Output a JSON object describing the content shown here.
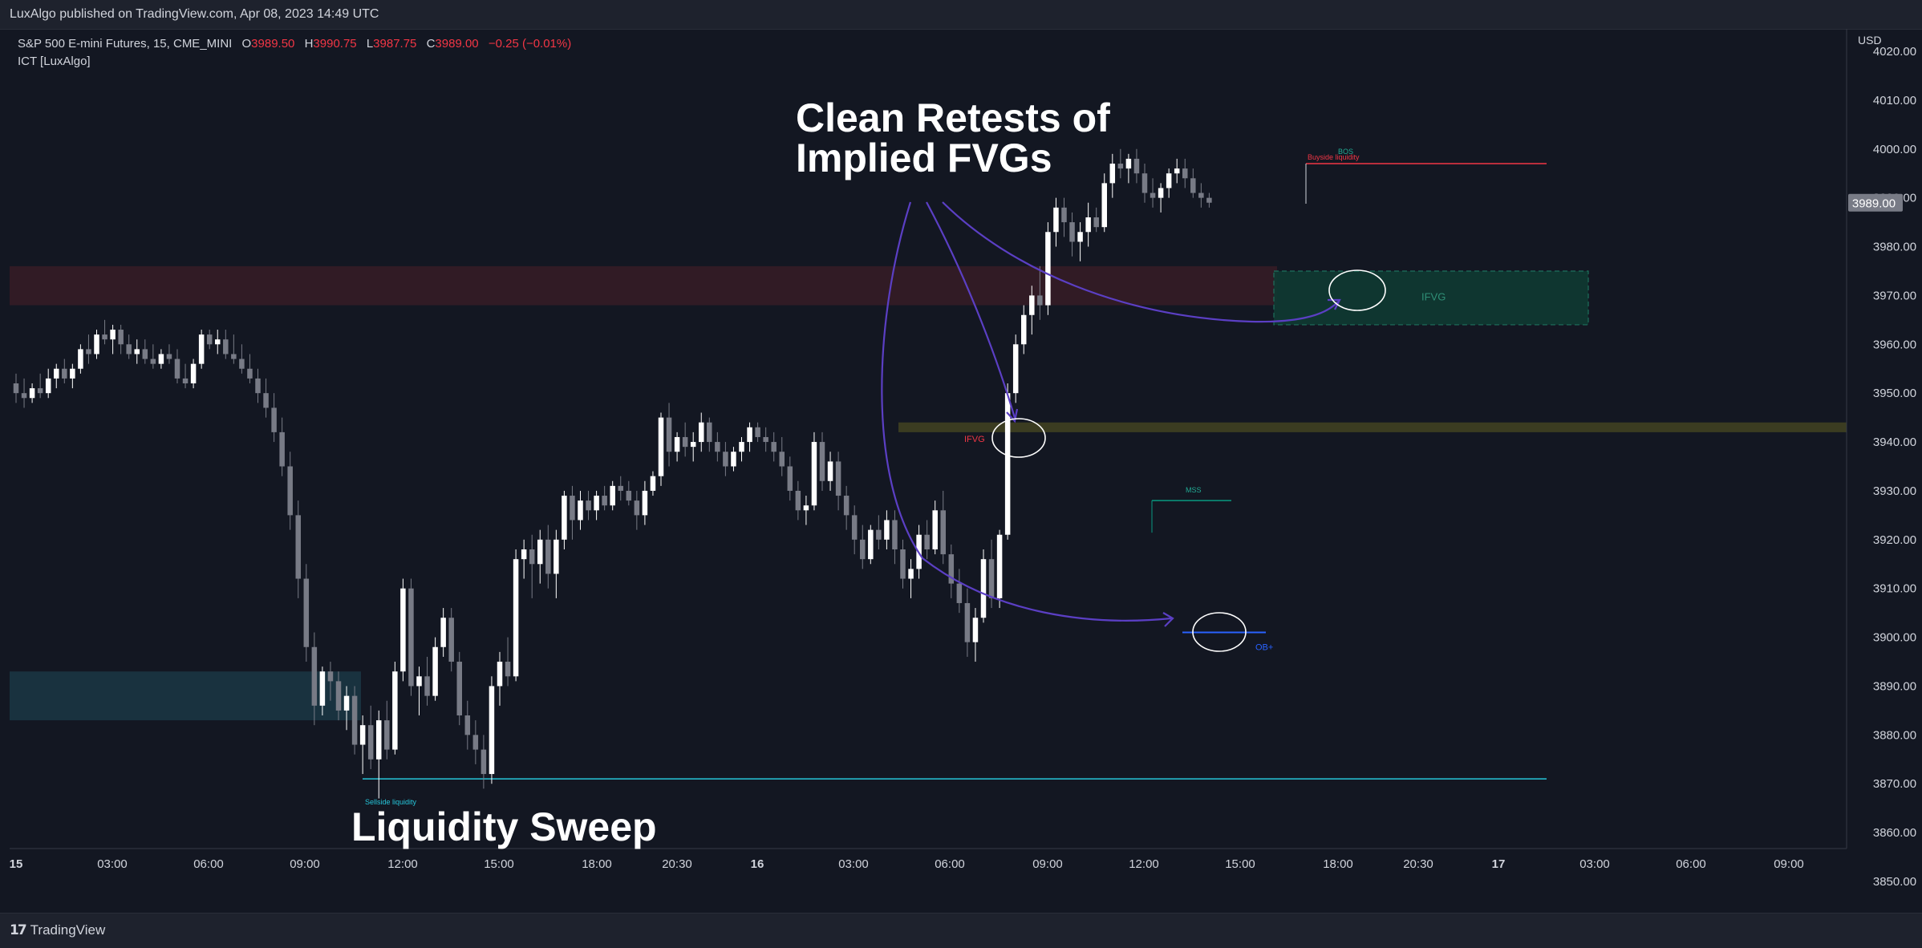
{
  "publish_info": "LuxAlgo published on TradingView.com, Apr 08, 2023 14:49 UTC",
  "symbol": {
    "name": "S&P 500 E-mini Futures, 15, CME_MINI",
    "open_label": "O",
    "open": "3989.50",
    "high_label": "H",
    "high": "3990.75",
    "low_label": "L",
    "low": "3987.75",
    "close_label": "C",
    "close": "3989.00",
    "change": "−0.25 (−0.01%)"
  },
  "indicator": "ICT [LuxAlgo]",
  "currency": "USD",
  "last_price": "3989.00",
  "brand": "TradingView",
  "annotations": {
    "headline_line1": "Clean Retests of",
    "headline_line2": "Implied FVGs",
    "sweep": "Liquidity Sweep",
    "ifvg_upper": "IFVG",
    "ifvg_mid": "IFVG",
    "bos": "BOS",
    "buyside": "Buyside liquidity",
    "mss": "MSS",
    "ob": "OB+",
    "sellside": "Sellside liquidity"
  },
  "colors": {
    "background": "#131722",
    "bull": "#ffffff",
    "bear": "#787b86",
    "accent_purple": "#5b3fc4",
    "sellside_line": "#26c6da",
    "buyside_line": "#f23645",
    "ob_line": "#2962ff",
    "mss_line": "#089981"
  },
  "chart_data": {
    "type": "candlestick",
    "y_ticks": [
      3850,
      3860,
      3870,
      3880,
      3890,
      3900,
      3910,
      3920,
      3930,
      3940,
      3950,
      3960,
      3970,
      3980,
      3990,
      4000,
      4010,
      4020
    ],
    "ylim": [
      3847,
      4021
    ],
    "x_ticks": [
      "15",
      "03:00",
      "06:00",
      "09:00",
      "12:00",
      "15:00",
      "18:00",
      "20:30",
      "16",
      "03:00",
      "06:00",
      "09:00",
      "12:00",
      "15:00",
      "18:00",
      "20:30",
      "17",
      "03:00",
      "06:00",
      "09:00"
    ],
    "x_tick_bold": [
      true,
      false,
      false,
      false,
      false,
      false,
      false,
      false,
      true,
      false,
      false,
      false,
      false,
      false,
      false,
      false,
      true,
      false,
      false,
      false
    ],
    "candles": [
      [
        3952,
        3954,
        3948,
        3950
      ],
      [
        3950,
        3953,
        3947,
        3949
      ],
      [
        3949,
        3952,
        3948,
        3951
      ],
      [
        3951,
        3954,
        3949,
        3950
      ],
      [
        3950,
        3955,
        3949,
        3953
      ],
      [
        3953,
        3956,
        3951,
        3955
      ],
      [
        3955,
        3957,
        3952,
        3953
      ],
      [
        3953,
        3956,
        3951,
        3955
      ],
      [
        3955,
        3960,
        3954,
        3959
      ],
      [
        3959,
        3962,
        3956,
        3958
      ],
      [
        3958,
        3963,
        3957,
        3962
      ],
      [
        3962,
        3965,
        3960,
        3961
      ],
      [
        3961,
        3964,
        3958,
        3963
      ],
      [
        3963,
        3964,
        3958,
        3960
      ],
      [
        3960,
        3962,
        3957,
        3958
      ],
      [
        3958,
        3961,
        3956,
        3959
      ],
      [
        3959,
        3961,
        3956,
        3957
      ],
      [
        3957,
        3960,
        3955,
        3956
      ],
      [
        3956,
        3959,
        3955,
        3958
      ],
      [
        3958,
        3960,
        3956,
        3957
      ],
      [
        3957,
        3959,
        3952,
        3953
      ],
      [
        3953,
        3956,
        3951,
        3952
      ],
      [
        3952,
        3957,
        3951,
        3956
      ],
      [
        3956,
        3963,
        3955,
        3962
      ],
      [
        3962,
        3963,
        3959,
        3960
      ],
      [
        3960,
        3963,
        3958,
        3961
      ],
      [
        3961,
        3963,
        3957,
        3958
      ],
      [
        3958,
        3962,
        3956,
        3957
      ],
      [
        3957,
        3960,
        3954,
        3955
      ],
      [
        3955,
        3958,
        3952,
        3953
      ],
      [
        3953,
        3955,
        3948,
        3950
      ],
      [
        3950,
        3953,
        3945,
        3947
      ],
      [
        3947,
        3950,
        3940,
        3942
      ],
      [
        3942,
        3945,
        3933,
        3935
      ],
      [
        3935,
        3938,
        3922,
        3925
      ],
      [
        3925,
        3928,
        3908,
        3912
      ],
      [
        3912,
        3915,
        3895,
        3898
      ],
      [
        3898,
        3901,
        3882,
        3886
      ],
      [
        3886,
        3894,
        3884,
        3893
      ],
      [
        3893,
        3895,
        3887,
        3891
      ],
      [
        3891,
        3893,
        3883,
        3885
      ],
      [
        3885,
        3890,
        3881,
        3888
      ],
      [
        3888,
        3890,
        3876,
        3878
      ],
      [
        3878,
        3884,
        3872,
        3882
      ],
      [
        3882,
        3886,
        3873,
        3875
      ],
      [
        3875,
        3885,
        3867,
        3883
      ],
      [
        3883,
        3887,
        3875,
        3877
      ],
      [
        3877,
        3895,
        3876,
        3893
      ],
      [
        3893,
        3912,
        3891,
        3910
      ],
      [
        3910,
        3912,
        3888,
        3890
      ],
      [
        3890,
        3894,
        3884,
        3892
      ],
      [
        3892,
        3896,
        3886,
        3888
      ],
      [
        3888,
        3900,
        3887,
        3898
      ],
      [
        3898,
        3906,
        3896,
        3904
      ],
      [
        3904,
        3906,
        3893,
        3895
      ],
      [
        3895,
        3897,
        3882,
        3884
      ],
      [
        3884,
        3887,
        3877,
        3880
      ],
      [
        3880,
        3883,
        3874,
        3877
      ],
      [
        3877,
        3880,
        3869,
        3872
      ],
      [
        3872,
        3892,
        3870,
        3890
      ],
      [
        3890,
        3897,
        3886,
        3895
      ],
      [
        3895,
        3900,
        3890,
        3892
      ],
      [
        3892,
        3918,
        3891,
        3916
      ],
      [
        3916,
        3920,
        3912,
        3918
      ],
      [
        3918,
        3921,
        3908,
        3915
      ],
      [
        3915,
        3922,
        3911,
        3920
      ],
      [
        3920,
        3923,
        3910,
        3913
      ],
      [
        3913,
        3922,
        3908,
        3920
      ],
      [
        3920,
        3930,
        3918,
        3929
      ],
      [
        3929,
        3931,
        3920,
        3924
      ],
      [
        3924,
        3930,
        3922,
        3928
      ],
      [
        3928,
        3930,
        3924,
        3926
      ],
      [
        3926,
        3930,
        3924,
        3929
      ],
      [
        3929,
        3931,
        3926,
        3927
      ],
      [
        3927,
        3932,
        3926,
        3931
      ],
      [
        3931,
        3933,
        3928,
        3930
      ],
      [
        3930,
        3932,
        3927,
        3928
      ],
      [
        3928,
        3930,
        3922,
        3925
      ],
      [
        3925,
        3932,
        3923,
        3930
      ],
      [
        3930,
        3934,
        3929,
        3933
      ],
      [
        3933,
        3946,
        3931,
        3945
      ],
      [
        3945,
        3948,
        3935,
        3938
      ],
      [
        3938,
        3942,
        3936,
        3941
      ],
      [
        3941,
        3944,
        3937,
        3939
      ],
      [
        3939,
        3942,
        3936,
        3940
      ],
      [
        3940,
        3946,
        3938,
        3944
      ],
      [
        3944,
        3945,
        3938,
        3940
      ],
      [
        3940,
        3942,
        3936,
        3938
      ],
      [
        3938,
        3940,
        3933,
        3935
      ],
      [
        3935,
        3939,
        3934,
        3938
      ],
      [
        3938,
        3941,
        3936,
        3940
      ],
      [
        3940,
        3944,
        3938,
        3943
      ],
      [
        3943,
        3944,
        3940,
        3941
      ],
      [
        3941,
        3943,
        3938,
        3940
      ],
      [
        3940,
        3942,
        3936,
        3938
      ],
      [
        3938,
        3941,
        3933,
        3935
      ],
      [
        3935,
        3937,
        3928,
        3930
      ],
      [
        3930,
        3932,
        3924,
        3926
      ],
      [
        3926,
        3929,
        3923,
        3927
      ],
      [
        3927,
        3942,
        3926,
        3940
      ],
      [
        3940,
        3942,
        3930,
        3932
      ],
      [
        3932,
        3938,
        3930,
        3936
      ],
      [
        3936,
        3938,
        3926,
        3929
      ],
      [
        3929,
        3931,
        3922,
        3925
      ],
      [
        3925,
        3927,
        3917,
        3920
      ],
      [
        3920,
        3923,
        3914,
        3916
      ],
      [
        3916,
        3923,
        3915,
        3922
      ],
      [
        3922,
        3925,
        3918,
        3920
      ],
      [
        3920,
        3926,
        3918,
        3924
      ],
      [
        3924,
        3926,
        3915,
        3918
      ],
      [
        3918,
        3920,
        3910,
        3912
      ],
      [
        3912,
        3916,
        3908,
        3914
      ],
      [
        3914,
        3923,
        3912,
        3921
      ],
      [
        3921,
        3924,
        3916,
        3918
      ],
      [
        3918,
        3928,
        3917,
        3926
      ],
      [
        3926,
        3930,
        3915,
        3917
      ],
      [
        3917,
        3919,
        3908,
        3911
      ],
      [
        3911,
        3914,
        3905,
        3907
      ],
      [
        3907,
        3910,
        3896,
        3899
      ],
      [
        3899,
        3906,
        3895,
        3904
      ],
      [
        3904,
        3918,
        3903,
        3916
      ],
      [
        3916,
        3920,
        3906,
        3908
      ],
      [
        3908,
        3922,
        3906,
        3921
      ],
      [
        3921,
        3952,
        3920,
        3950
      ],
      [
        3950,
        3962,
        3948,
        3960
      ],
      [
        3960,
        3968,
        3958,
        3966
      ],
      [
        3966,
        3972,
        3962,
        3970
      ],
      [
        3970,
        3976,
        3965,
        3968
      ],
      [
        3968,
        3985,
        3966,
        3983
      ],
      [
        3983,
        3990,
        3980,
        3988
      ],
      [
        3988,
        3990,
        3982,
        3985
      ],
      [
        3985,
        3987,
        3978,
        3981
      ],
      [
        3981,
        3985,
        3977,
        3983
      ],
      [
        3983,
        3989,
        3980,
        3986
      ],
      [
        3986,
        3988,
        3983,
        3984
      ],
      [
        3984,
        3995,
        3983,
        3993
      ],
      [
        3993,
        3999,
        3990,
        3997
      ],
      [
        3997,
        4000,
        3994,
        3996
      ],
      [
        3996,
        3999,
        3993,
        3998
      ],
      [
        3998,
        4000,
        3993,
        3995
      ],
      [
        3995,
        3997,
        3989,
        3991
      ],
      [
        3991,
        3994,
        3988,
        3990
      ],
      [
        3990,
        3993,
        3987,
        3992
      ],
      [
        3992,
        3996,
        3990,
        3995
      ],
      [
        3995,
        3998,
        3993,
        3996
      ],
      [
        3996,
        3998,
        3992,
        3994
      ],
      [
        3994,
        3996,
        3990,
        3991
      ],
      [
        3991,
        3993,
        3988,
        3990
      ],
      [
        3990,
        3991,
        3988,
        3989
      ]
    ],
    "zones": {
      "upper_ifvg_band": [
        3968,
        3976
      ],
      "demand_band": [
        3883,
        3893
      ],
      "ifvg_mid_band": [
        3942,
        3944
      ],
      "green_ifvg_box": [
        3964,
        3975
      ]
    },
    "levels": {
      "buyside_liquidity": 3997,
      "sellside_liquidity": 3871,
      "mss": 3928,
      "ob_plus": 3901
    }
  }
}
